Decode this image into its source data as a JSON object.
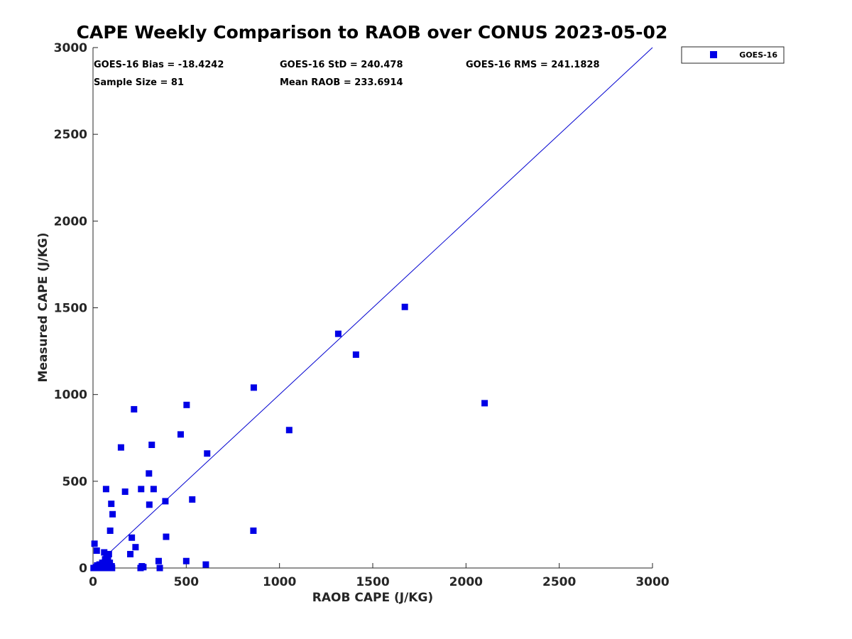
{
  "chart_data": {
    "type": "scatter",
    "title": "CAPE Weekly Comparison to RAOB over CONUS 2023-05-02",
    "xlabel": "RAOB CAPE (J/KG)",
    "ylabel": "Measured CAPE (J/KG)",
    "xlim": [
      0,
      3000
    ],
    "ylim": [
      0,
      3000
    ],
    "xticks": [
      "0",
      "500",
      "1000",
      "1500",
      "2000",
      "2500",
      "3000"
    ],
    "yticks": [
      "0",
      "500",
      "1000",
      "1500",
      "2000",
      "2500",
      "3000"
    ],
    "grid": false,
    "legend_position": "outside-top-right",
    "stats": {
      "bias": "GOES-16 Bias = -18.4242",
      "std": "GOES-16 StD = 240.478",
      "rms": "GOES-16 RMS = 241.1828",
      "sample_size": "Sample Size = 81",
      "mean_raob": "Mean RAOB = 233.6914"
    },
    "reference_line": {
      "name": "1:1",
      "from": [
        0,
        0
      ],
      "to": [
        3000,
        3000
      ],
      "color": "#0000d0"
    },
    "series": [
      {
        "name": "GOES-16",
        "color": "#0000e6",
        "marker": "square",
        "points": [
          [
            3,
            0
          ],
          [
            8,
            140
          ],
          [
            10,
            0
          ],
          [
            15,
            5
          ],
          [
            20,
            100
          ],
          [
            22,
            15
          ],
          [
            25,
            0
          ],
          [
            30,
            5
          ],
          [
            35,
            20
          ],
          [
            40,
            0
          ],
          [
            45,
            10
          ],
          [
            50,
            30
          ],
          [
            55,
            0
          ],
          [
            60,
            90
          ],
          [
            62,
            5
          ],
          [
            65,
            50
          ],
          [
            68,
            10
          ],
          [
            70,
            455
          ],
          [
            72,
            70
          ],
          [
            75,
            0
          ],
          [
            78,
            40
          ],
          [
            80,
            60
          ],
          [
            82,
            15
          ],
          [
            85,
            80
          ],
          [
            88,
            0
          ],
          [
            90,
            30
          ],
          [
            92,
            215
          ],
          [
            95,
            5
          ],
          [
            98,
            370
          ],
          [
            100,
            10
          ],
          [
            102,
            0
          ],
          [
            105,
            310
          ],
          [
            150,
            695
          ],
          [
            172,
            440
          ],
          [
            200,
            80
          ],
          [
            208,
            175
          ],
          [
            220,
            915
          ],
          [
            228,
            120
          ],
          [
            255,
            0
          ],
          [
            258,
            455
          ],
          [
            262,
            10
          ],
          [
            270,
            5
          ],
          [
            300,
            545
          ],
          [
            302,
            365
          ],
          [
            315,
            710
          ],
          [
            325,
            455
          ],
          [
            352,
            40
          ],
          [
            358,
            0
          ],
          [
            388,
            385
          ],
          [
            392,
            180
          ],
          [
            470,
            770
          ],
          [
            500,
            40
          ],
          [
            502,
            940
          ],
          [
            532,
            395
          ],
          [
            605,
            20
          ],
          [
            612,
            660
          ],
          [
            860,
            215
          ],
          [
            862,
            1040
          ],
          [
            1052,
            795
          ],
          [
            1315,
            1350
          ],
          [
            1410,
            1230
          ],
          [
            1672,
            1505
          ],
          [
            2100,
            950
          ]
        ]
      }
    ]
  }
}
